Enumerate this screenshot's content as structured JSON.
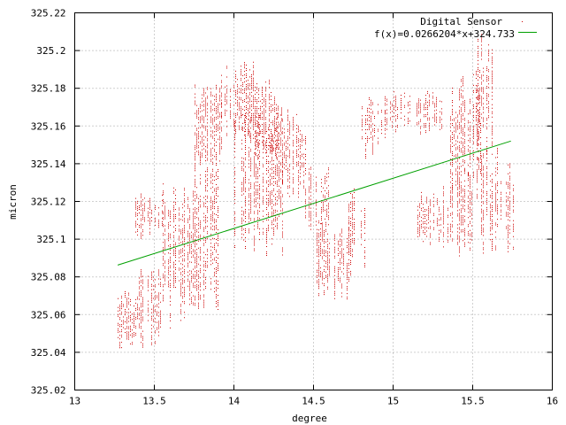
{
  "chart_data": {
    "type": "scatter",
    "title": "",
    "xlabel": "degree",
    "ylabel": "micron",
    "xlim": [
      13,
      16
    ],
    "ylim": [
      325.02,
      325.22
    ],
    "xticks": [
      "13",
      "13.5",
      "14",
      "14.5",
      "15",
      "15.5",
      "16"
    ],
    "yticks": [
      "325.02",
      "325.04",
      "325.06",
      "325.08",
      "325.1",
      "325.12",
      "325.14",
      "325.16",
      "325.18",
      "325.2",
      "325.22"
    ],
    "grid": true,
    "legend_position": "top-right",
    "series": [
      {
        "name": "Digital Sensor",
        "kind": "points",
        "color": "#cc0000",
        "clusters": [
          {
            "x": [
              13.27,
              13.4
            ],
            "y": [
              325.04,
              325.075
            ]
          },
          {
            "x": [
              13.4,
              13.55
            ],
            "y": [
              325.04,
              325.085
            ]
          },
          {
            "x": [
              13.38,
              13.55
            ],
            "y": [
              325.1,
              325.125
            ]
          },
          {
            "x": [
              13.55,
              13.75
            ],
            "y": [
              325.05,
              325.13
            ]
          },
          {
            "x": [
              13.75,
              13.9
            ],
            "y": [
              325.06,
              325.15
            ]
          },
          {
            "x": [
              13.75,
              13.92
            ],
            "y": [
              325.14,
              325.185
            ]
          },
          {
            "x": [
              13.92,
              14.12
            ],
            "y": [
              325.15,
              325.195
            ]
          },
          {
            "x": [
              14.0,
              14.3
            ],
            "y": [
              325.09,
              325.17
            ]
          },
          {
            "x": [
              14.12,
              14.3
            ],
            "y": [
              325.14,
              325.185
            ]
          },
          {
            "x": [
              14.3,
              14.45
            ],
            "y": [
              325.12,
              325.17
            ]
          },
          {
            "x": [
              14.45,
              14.6
            ],
            "y": [
              325.1,
              325.14
            ]
          },
          {
            "x": [
              14.52,
              14.72
            ],
            "y": [
              325.065,
              325.11
            ]
          },
          {
            "x": [
              14.72,
              14.82
            ],
            "y": [
              325.08,
              325.13
            ]
          },
          {
            "x": [
              14.8,
              14.95
            ],
            "y": [
              325.14,
              325.18
            ]
          },
          {
            "x": [
              14.95,
              15.3
            ],
            "y": [
              325.155,
              325.18
            ]
          },
          {
            "x": [
              15.15,
              15.35
            ],
            "y": [
              325.095,
              325.125
            ]
          },
          {
            "x": [
              15.3,
              15.5
            ],
            "y": [
              325.09,
              325.14
            ]
          },
          {
            "x": [
              15.35,
              15.55
            ],
            "y": [
              325.12,
              325.19
            ]
          },
          {
            "x": [
              15.52,
              15.62
            ],
            "y": [
              325.14,
              325.21
            ]
          },
          {
            "x": [
              15.55,
              15.75
            ],
            "y": [
              325.09,
              325.15
            ]
          }
        ]
      },
      {
        "name": "f(x)=0.0266204*x+324.733",
        "kind": "line",
        "color": "#00a000",
        "slope": 0.0266204,
        "intercept": 324.733,
        "x": [
          13.27,
          15.74
        ]
      }
    ]
  }
}
